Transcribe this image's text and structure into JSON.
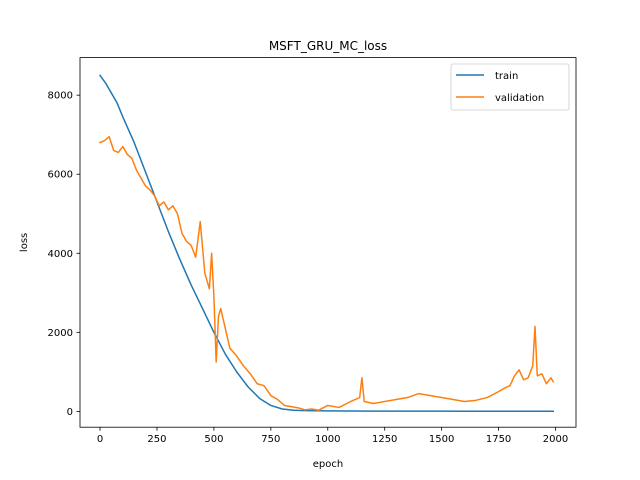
{
  "chart_data": {
    "type": "line",
    "title": "MSFT_GRU_MC_loss",
    "xlabel": "epoch",
    "ylabel": "loss",
    "xlim": [
      -88,
      2090
    ],
    "ylim": [
      -400,
      8950
    ],
    "xticks": [
      0,
      250,
      500,
      750,
      1000,
      1250,
      1500,
      1750,
      2000
    ],
    "yticks": [
      0,
      2000,
      4000,
      6000,
      8000
    ],
    "x_tick_labels": [
      "0",
      "250",
      "500",
      "750",
      "1000",
      "1250",
      "1500",
      "1750",
      "2000"
    ],
    "y_tick_labels": [
      "0",
      "2000",
      "4000",
      "6000",
      "8000"
    ],
    "grid": false,
    "legend_position": "top-right",
    "series": [
      {
        "name": "train",
        "color": "#1f77b4",
        "x": [
          0,
          25,
          50,
          75,
          100,
          150,
          200,
          250,
          300,
          350,
          400,
          450,
          500,
          550,
          600,
          650,
          700,
          750,
          800,
          850,
          900,
          950,
          1000,
          1100,
          1200,
          1300,
          1400,
          1500,
          1600,
          1700,
          1800,
          1900,
          1990
        ],
        "y": [
          8500,
          8300,
          8050,
          7800,
          7450,
          6800,
          6050,
          5300,
          4550,
          3850,
          3200,
          2600,
          2000,
          1450,
          1000,
          620,
          330,
          150,
          60,
          30,
          20,
          15,
          12,
          10,
          8,
          7,
          6,
          6,
          5,
          5,
          5,
          5,
          5
        ]
      },
      {
        "name": "validation",
        "color": "#ff7f0e",
        "x": [
          0,
          20,
          40,
          60,
          80,
          100,
          120,
          140,
          160,
          180,
          200,
          220,
          240,
          260,
          280,
          300,
          320,
          340,
          360,
          380,
          400,
          420,
          440,
          460,
          470,
          480,
          490,
          500,
          510,
          520,
          530,
          550,
          570,
          600,
          630,
          660,
          690,
          720,
          750,
          780,
          810,
          840,
          870,
          900,
          930,
          960,
          1000,
          1050,
          1100,
          1140,
          1150,
          1160,
          1200,
          1250,
          1300,
          1350,
          1400,
          1450,
          1500,
          1550,
          1600,
          1650,
          1700,
          1750,
          1780,
          1800,
          1820,
          1840,
          1860,
          1880,
          1900,
          1910,
          1920,
          1940,
          1960,
          1980,
          1990
        ],
        "y": [
          6800,
          6850,
          6950,
          6600,
          6550,
          6700,
          6500,
          6400,
          6100,
          5900,
          5700,
          5600,
          5450,
          5200,
          5300,
          5100,
          5200,
          5000,
          4500,
          4300,
          4200,
          3900,
          4800,
          3500,
          3300,
          3100,
          4000,
          2900,
          1250,
          2400,
          2600,
          2100,
          1600,
          1400,
          1150,
          950,
          700,
          650,
          400,
          300,
          150,
          120,
          90,
          40,
          60,
          30,
          150,
          100,
          250,
          350,
          850,
          250,
          200,
          250,
          300,
          350,
          450,
          400,
          350,
          300,
          250,
          280,
          350,
          500,
          600,
          650,
          900,
          1050,
          800,
          850,
          1150,
          2150,
          900,
          950,
          700,
          850,
          750
        ]
      }
    ]
  }
}
